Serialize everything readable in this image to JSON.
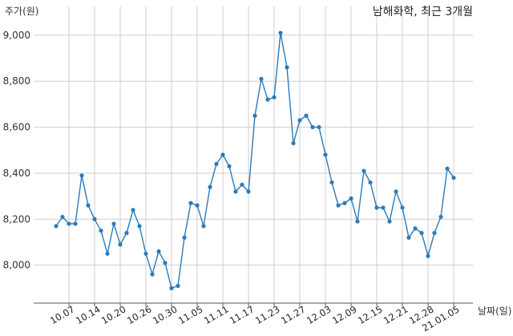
{
  "chart_data": {
    "type": "line",
    "title": "남해화학, 최근 3개월",
    "ylabel": "주가(원)",
    "xlabel": "날짜(일)",
    "grid": true,
    "xlim": [
      -3.5,
      65
    ],
    "ylim": [
      7835,
      9125
    ],
    "yticks": [
      {
        "value": 8000,
        "label": "8,000"
      },
      {
        "value": 8200,
        "label": "8,200"
      },
      {
        "value": 8400,
        "label": "8,400"
      },
      {
        "value": 8600,
        "label": "8,600"
      },
      {
        "value": 8800,
        "label": "8,800"
      },
      {
        "value": 9000,
        "label": "9,000"
      }
    ],
    "xticks": [
      {
        "index": 2,
        "label": "10.07"
      },
      {
        "index": 6,
        "label": "10.14"
      },
      {
        "index": 10,
        "label": "10.20"
      },
      {
        "index": 14,
        "label": "10.26"
      },
      {
        "index": 18,
        "label": "10.30"
      },
      {
        "index": 22,
        "label": "11.05"
      },
      {
        "index": 26,
        "label": "11.11"
      },
      {
        "index": 30,
        "label": "11.17"
      },
      {
        "index": 34,
        "label": "11.23"
      },
      {
        "index": 38,
        "label": "11.27"
      },
      {
        "index": 42,
        "label": "12.03"
      },
      {
        "index": 46,
        "label": "12.09"
      },
      {
        "index": 50,
        "label": "12.15"
      },
      {
        "index": 54,
        "label": "12.21"
      },
      {
        "index": 58,
        "label": "12.28"
      },
      {
        "index": 62,
        "label": "21.01.05"
      }
    ],
    "values": [
      8170,
      8210,
      8180,
      8180,
      8390,
      8260,
      8200,
      8150,
      8050,
      8180,
      8090,
      8140,
      8240,
      8170,
      8050,
      7960,
      8060,
      8010,
      7900,
      7910,
      8120,
      8270,
      8260,
      8170,
      8340,
      8440,
      8480,
      8430,
      8320,
      8350,
      8320,
      8650,
      8810,
      8720,
      8730,
      9010,
      8860,
      8530,
      8630,
      8650,
      8600,
      8600,
      8480,
      8360,
      8260,
      8270,
      8290,
      8190,
      8410,
      8360,
      8250,
      8250,
      8190,
      8320,
      8250,
      8120,
      8160,
      8140,
      8040,
      8140,
      8210,
      8420,
      8380
    ],
    "colors": {
      "line": "#2b7bba",
      "marker": "#2b7bba",
      "grid": "#cfcfcf",
      "axis": "#555555"
    }
  }
}
